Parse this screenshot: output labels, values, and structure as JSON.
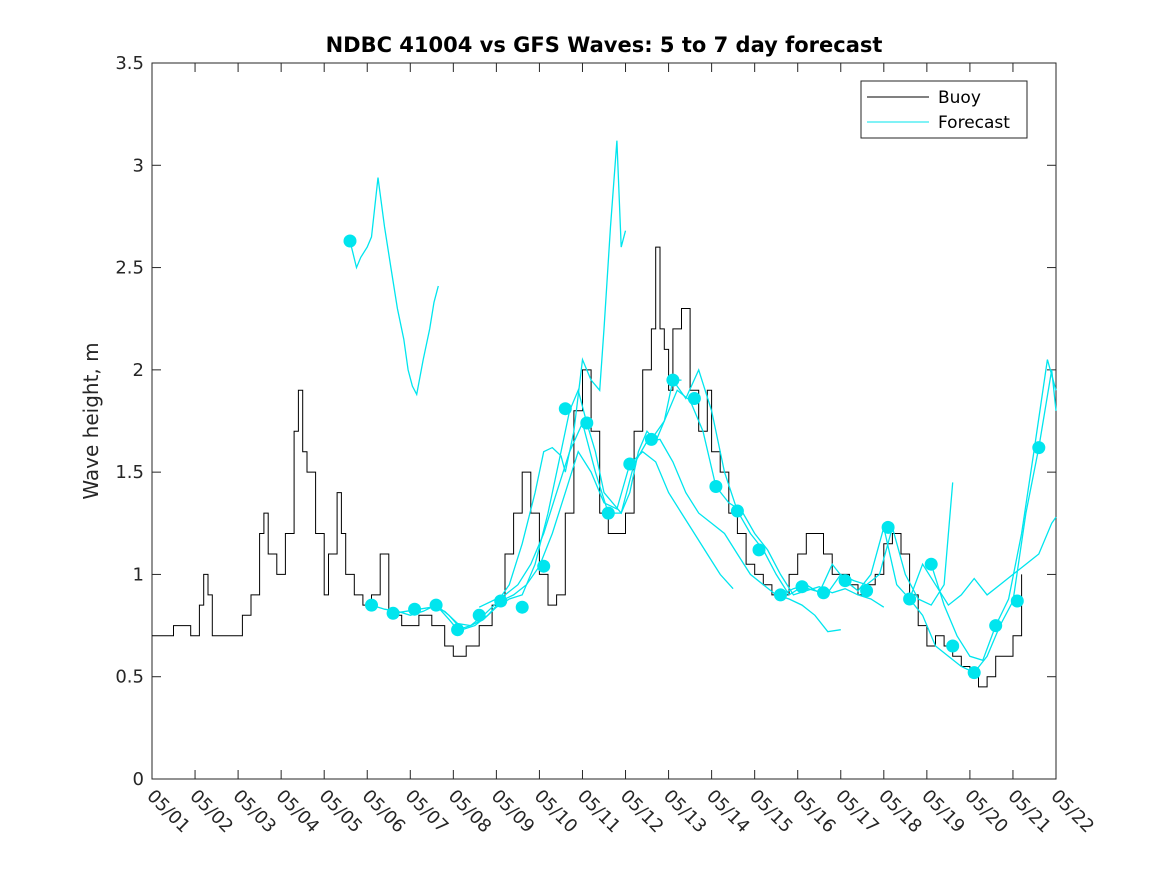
{
  "chart_data": {
    "type": "line",
    "title": "NDBC 41004 vs GFS Waves: 5 to 7 day forecast",
    "xlabel": "",
    "ylabel": "Wave height, m",
    "xlim": [
      1,
      22
    ],
    "ylim": [
      0,
      3.5
    ],
    "xtick_labels": [
      "05/01",
      "05/02",
      "05/03",
      "05/04",
      "05/05",
      "05/06",
      "05/07",
      "05/08",
      "05/09",
      "05/10",
      "05/11",
      "05/12",
      "05/13",
      "05/14",
      "05/15",
      "05/16",
      "05/17",
      "05/18",
      "05/19",
      "05/20",
      "05/21",
      "05/22"
    ],
    "ytick_labels": [
      "0",
      "0.5",
      "1",
      "1.5",
      "2",
      "2.5",
      "3",
      "3.5"
    ],
    "grid": false,
    "legend_position": "top-right",
    "legend": [
      "Buoy",
      "Forecast"
    ],
    "colors": {
      "buoy": "#000000",
      "forecast": "#00e5ee"
    },
    "buoy": {
      "name": "Buoy",
      "x": [
        1.0,
        1.5,
        1.9,
        2.1,
        2.2,
        2.3,
        2.4,
        2.6,
        2.9,
        3.1,
        3.3,
        3.5,
        3.6,
        3.7,
        3.9,
        4.1,
        4.3,
        4.4,
        4.5,
        4.6,
        4.8,
        5.0,
        5.1,
        5.3,
        5.4,
        5.5,
        5.7,
        5.9,
        6.1,
        6.3,
        6.5,
        6.8,
        7.0,
        7.2,
        7.5,
        7.8,
        8.0,
        8.3,
        8.6,
        8.9,
        9.2,
        9.4,
        9.6,
        9.8,
        10.0,
        10.2,
        10.4,
        10.6,
        10.8,
        11.0,
        11.2,
        11.4,
        11.6,
        11.8,
        12.0,
        12.2,
        12.4,
        12.6,
        12.7,
        12.8,
        12.9,
        13.0,
        13.1,
        13.3,
        13.5,
        13.7,
        13.9,
        14.0,
        14.2,
        14.4,
        14.6,
        14.8,
        15.0,
        15.2,
        15.4,
        15.6,
        15.8,
        16.0,
        16.2,
        16.4,
        16.6,
        16.8,
        17.0,
        17.2,
        17.4,
        17.6,
        17.8,
        18.0,
        18.2,
        18.4,
        18.6,
        18.8,
        19.0,
        19.2,
        19.4,
        19.6,
        19.8,
        20.0,
        20.2,
        20.4,
        20.6,
        20.8,
        21.0,
        21.2
      ],
      "y": [
        0.7,
        0.75,
        0.7,
        0.85,
        1.0,
        0.9,
        0.7,
        0.7,
        0.7,
        0.8,
        0.9,
        1.2,
        1.3,
        1.1,
        1.0,
        1.2,
        1.7,
        1.9,
        1.6,
        1.5,
        1.2,
        0.9,
        1.1,
        1.4,
        1.2,
        1.0,
        0.9,
        0.85,
        0.9,
        1.1,
        0.8,
        0.75,
        0.75,
        0.8,
        0.75,
        0.65,
        0.6,
        0.65,
        0.75,
        0.85,
        1.1,
        1.3,
        1.5,
        1.3,
        1.0,
        0.85,
        0.9,
        1.3,
        1.8,
        2.0,
        1.7,
        1.3,
        1.2,
        1.2,
        1.3,
        1.7,
        2.0,
        2.2,
        2.6,
        2.2,
        2.1,
        1.9,
        2.2,
        2.3,
        1.9,
        1.7,
        1.9,
        1.6,
        1.5,
        1.3,
        1.2,
        1.05,
        1.0,
        0.95,
        0.9,
        0.9,
        1.0,
        1.1,
        1.2,
        1.2,
        1.1,
        1.0,
        1.0,
        0.95,
        0.9,
        0.95,
        1.0,
        1.15,
        1.2,
        1.1,
        0.9,
        0.75,
        0.65,
        0.7,
        0.65,
        0.6,
        0.55,
        0.5,
        0.45,
        0.5,
        0.6,
        0.6,
        0.7,
        1.0
      ]
    },
    "forecast_series": [
      {
        "name": "Forecast",
        "x": [
          5.6,
          5.75,
          5.85,
          6.0,
          6.1,
          6.25,
          6.4,
          6.55,
          6.7,
          6.85,
          6.95,
          7.05,
          7.15,
          7.3,
          7.45,
          7.55,
          7.65
        ],
        "y": [
          2.63,
          2.5,
          2.55,
          2.6,
          2.65,
          2.94,
          2.7,
          2.5,
          2.3,
          2.15,
          2.0,
          1.92,
          1.88,
          2.05,
          2.2,
          2.33,
          2.41
        ]
      },
      {
        "name": "Forecast",
        "x": [
          6.1,
          6.4,
          6.7,
          7.0,
          7.3,
          7.6,
          7.9,
          8.1,
          8.4,
          8.7,
          9.0,
          9.3,
          9.6,
          9.9,
          10.1,
          10.3,
          10.5,
          10.6,
          10.8,
          11.0,
          11.2,
          11.4,
          11.5,
          11.65,
          11.8,
          11.9,
          12.0
        ],
        "y": [
          0.85,
          0.83,
          0.82,
          0.8,
          0.82,
          0.85,
          0.78,
          0.73,
          0.75,
          0.8,
          0.86,
          0.95,
          1.15,
          1.4,
          1.6,
          1.62,
          1.58,
          1.5,
          1.7,
          2.05,
          1.95,
          1.9,
          2.2,
          2.7,
          3.12,
          2.6,
          2.68
        ]
      },
      {
        "name": "Forecast",
        "x": [
          6.6,
          6.9,
          7.2,
          7.5,
          7.8,
          8.1,
          8.4,
          8.7,
          9.0,
          9.3,
          9.6,
          9.9,
          10.2,
          10.5,
          10.7,
          10.9,
          11.1,
          11.3,
          11.5,
          11.7,
          11.9,
          12.1,
          12.3,
          12.5,
          12.7,
          12.9,
          13.1,
          13.3
        ],
        "y": [
          0.81,
          0.82,
          0.83,
          0.84,
          0.82,
          0.76,
          0.75,
          0.78,
          0.84,
          0.88,
          0.9,
          1.05,
          1.3,
          1.6,
          1.8,
          1.9,
          1.74,
          1.6,
          1.4,
          1.35,
          1.3,
          1.4,
          1.6,
          1.7,
          1.65,
          1.75,
          1.95,
          1.95
        ]
      },
      {
        "name": "Forecast",
        "x": [
          7.6,
          7.9,
          8.2,
          8.5,
          8.8,
          9.1,
          9.4,
          9.7,
          10.0,
          10.3,
          10.6,
          10.9,
          11.2,
          11.5,
          11.8,
          12.1,
          12.4,
          12.7,
          13.0,
          13.3,
          13.6,
          13.9,
          14.2,
          14.5
        ],
        "y": [
          0.85,
          0.8,
          0.73,
          0.75,
          0.8,
          0.87,
          0.9,
          0.95,
          1.04,
          1.2,
          1.4,
          1.6,
          1.5,
          1.35,
          1.32,
          1.54,
          1.6,
          1.55,
          1.4,
          1.3,
          1.2,
          1.1,
          1.0,
          0.93
        ]
      },
      {
        "name": "Forecast",
        "x": [
          8.6,
          8.9,
          9.2,
          9.5,
          9.8,
          10.1,
          10.4,
          10.7,
          11.0,
          11.3,
          11.6,
          11.9,
          12.2,
          12.5,
          12.8,
          13.1,
          13.4,
          13.7,
          14.0,
          14.3,
          14.6,
          14.9,
          15.2,
          15.5,
          15.8,
          16.1,
          16.4,
          16.7,
          17.0
        ],
        "y": [
          0.84,
          0.87,
          0.9,
          0.95,
          1.05,
          1.2,
          1.4,
          1.6,
          1.74,
          1.5,
          1.3,
          1.3,
          1.54,
          1.65,
          1.66,
          1.55,
          1.4,
          1.3,
          1.25,
          1.2,
          1.1,
          1.0,
          0.95,
          0.9,
          0.88,
          0.85,
          0.8,
          0.72,
          0.73
        ]
      },
      {
        "name": "Forecast",
        "x": [
          12.6,
          12.9,
          13.2,
          13.5,
          13.8,
          14.1,
          14.4,
          14.7,
          15.0,
          15.3,
          15.6,
          15.9,
          16.2,
          16.5,
          16.8,
          17.1,
          17.4,
          17.7,
          18.0
        ],
        "y": [
          1.66,
          1.75,
          1.9,
          1.85,
          1.7,
          1.43,
          1.35,
          1.31,
          1.2,
          1.12,
          1.0,
          0.9,
          0.92,
          0.94,
          0.91,
          0.93,
          0.9,
          0.88,
          0.84
        ]
      },
      {
        "name": "Forecast",
        "x": [
          13.1,
          13.4,
          13.7,
          14.0,
          14.3,
          14.6,
          14.9,
          15.2,
          15.5,
          15.8,
          16.1,
          16.4,
          16.7,
          17.0,
          17.3,
          17.6,
          17.9,
          18.2,
          18.5,
          18.8,
          19.1,
          19.4,
          19.6
        ],
        "y": [
          1.95,
          1.86,
          2.0,
          1.8,
          1.5,
          1.31,
          1.2,
          1.12,
          1.0,
          0.9,
          0.94,
          0.92,
          0.91,
          1.0,
          0.97,
          0.95,
          1.0,
          1.23,
          1.0,
          0.88,
          0.85,
          0.95,
          1.45
        ]
      },
      {
        "name": "Forecast",
        "x": [
          15.6,
          15.9,
          16.2,
          16.5,
          16.8,
          17.1,
          17.4,
          17.7,
          18.0,
          18.3,
          18.6,
          18.9,
          19.2,
          19.5,
          19.8,
          20.1,
          20.4,
          20.7,
          21.0,
          21.3,
          21.6,
          21.9,
          22.0
        ],
        "y": [
          0.9,
          0.93,
          0.95,
          0.91,
          1.05,
          0.97,
          0.92,
          1.0,
          1.23,
          0.95,
          0.88,
          0.8,
          0.65,
          0.6,
          0.55,
          0.52,
          0.6,
          0.75,
          0.87,
          1.3,
          1.62,
          2.0,
          1.8
        ]
      },
      {
        "name": "Forecast",
        "x": [
          18.6,
          18.9,
          19.2,
          19.5,
          19.8,
          20.1,
          20.4,
          20.7,
          21.0,
          21.3,
          21.6,
          21.9,
          22.0
        ],
        "y": [
          0.88,
          1.05,
          0.95,
          0.85,
          0.9,
          0.98,
          0.9,
          0.95,
          1.0,
          1.05,
          1.1,
          1.25,
          1.28
        ]
      },
      {
        "name": "Forecast",
        "x": [
          19.1,
          19.4,
          19.7,
          20.0,
          20.3,
          20.6,
          20.9,
          21.2,
          21.5,
          21.8,
          22.0
        ],
        "y": [
          1.05,
          0.85,
          0.7,
          0.6,
          0.58,
          0.75,
          0.88,
          1.2,
          1.62,
          2.05,
          1.9
        ]
      }
    ],
    "forecast_markers": {
      "x": [
        5.6,
        6.1,
        6.6,
        7.1,
        7.6,
        8.1,
        8.6,
        9.1,
        9.6,
        10.1,
        10.6,
        11.1,
        11.6,
        12.1,
        12.6,
        13.1,
        13.6,
        14.1,
        14.6,
        15.1,
        15.6,
        16.1,
        16.6,
        17.1,
        17.6,
        18.1,
        18.6,
        19.1,
        19.6,
        20.1,
        20.6,
        21.1,
        21.6
      ],
      "y": [
        2.63,
        0.85,
        0.81,
        0.83,
        0.85,
        0.73,
        0.8,
        0.87,
        0.84,
        1.04,
        1.81,
        1.74,
        1.3,
        1.54,
        1.66,
        1.95,
        1.86,
        1.43,
        1.31,
        1.12,
        0.9,
        0.94,
        0.91,
        0.97,
        0.92,
        1.23,
        0.88,
        1.05,
        0.65,
        0.52,
        0.75,
        0.87,
        1.62
      ]
    }
  }
}
